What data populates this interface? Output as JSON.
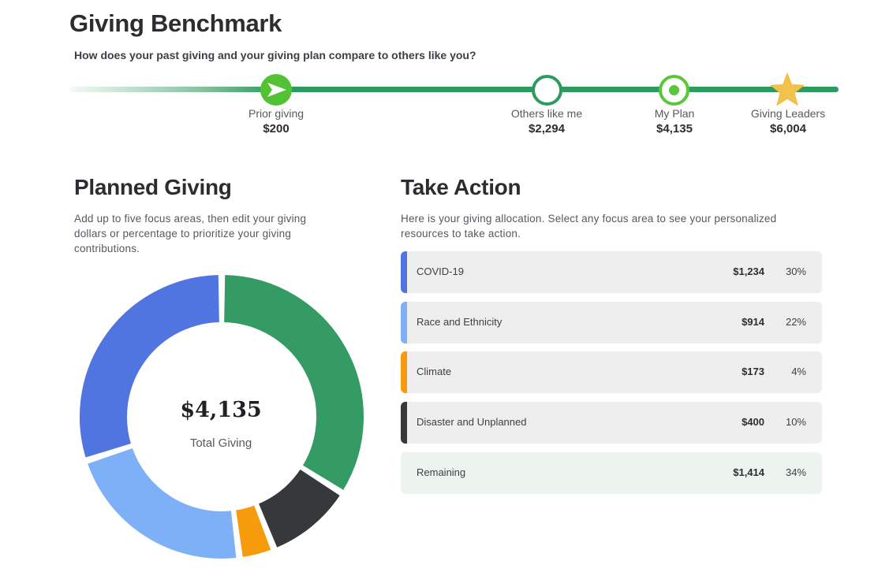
{
  "header": {
    "title": "Giving Benchmark",
    "subtitle": "How does your past giving and your giving plan compare to others like you?"
  },
  "benchmark": [
    {
      "label": "Prior giving",
      "value": "$200",
      "icon": "play-arrow-icon",
      "color": "#52c234"
    },
    {
      "label": "Others like me",
      "value": "$2,294",
      "icon": "hollow-circle-icon",
      "color": "#2e9b5e"
    },
    {
      "label": "My Plan",
      "value": "$4,135",
      "icon": "target-circle-icon",
      "color": "#5bc53b"
    },
    {
      "label": "Giving Leaders",
      "value": "$6,004",
      "icon": "star-icon",
      "color": "#f3c24b"
    }
  ],
  "planned": {
    "title": "Planned Giving",
    "description_lines": [
      "Add up to five focus areas, then edit your giving",
      "dollars or percentage to prioritize your giving",
      "contributions."
    ],
    "total_amount": "$4,135",
    "total_label": "Total Giving"
  },
  "action": {
    "title": "Take Action",
    "description_lines": [
      "Here is your giving allocation. Select any focus area to see your personalized",
      "resources to take action."
    ],
    "rows": [
      {
        "name": "COVID-19",
        "amount": "$1,234",
        "percent": "30%",
        "color": "#5175e0"
      },
      {
        "name": "Race and Ethnicity",
        "amount": "$914",
        "percent": "22%",
        "color": "#7eb0f7"
      },
      {
        "name": "Climate",
        "amount": "$173",
        "percent": "4%",
        "color": "#f59b0c"
      },
      {
        "name": "Disaster and Unplanned",
        "amount": "$400",
        "percent": "10%",
        "color": "#35393c"
      },
      {
        "name": "Remaining",
        "amount": "$1,414",
        "percent": "34%",
        "color": "#edf4f0"
      }
    ]
  },
  "chart_data": {
    "type": "pie",
    "categories": [
      "Remaining",
      "Disaster and Unplanned",
      "Climate",
      "Race and Ethnicity",
      "COVID-19"
    ],
    "values": [
      34,
      10,
      4,
      22,
      30
    ],
    "colors": [
      "#339b63",
      "#35393c",
      "#f59b0c",
      "#7eb0f7",
      "#5175e0"
    ]
  }
}
